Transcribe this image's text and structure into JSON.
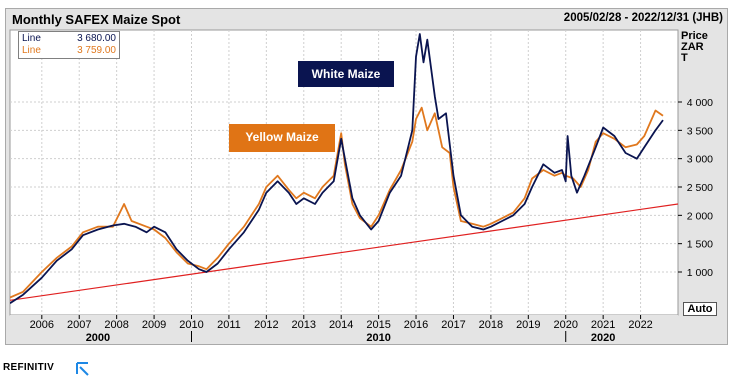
{
  "header": {
    "title": "Monthly SAFEX Maize Spot",
    "date_range": "2005/02/28 - 2022/12/31 (JHB)"
  },
  "legend": {
    "items": [
      {
        "label": "Line",
        "value": "3 680.00",
        "color": "#0a1450"
      },
      {
        "label": "Line",
        "value": "3 759.00",
        "color": "#e0781e"
      }
    ]
  },
  "y_unit": {
    "line1": "Price",
    "line2": "ZAR",
    "line3": "T"
  },
  "annotations": {
    "white": {
      "text": "White Maize",
      "bg": "#0a1450"
    },
    "yellow": {
      "text": "Yellow Maize",
      "bg": "#e07415"
    }
  },
  "auto_button": "Auto",
  "footer": {
    "brand": "REFINITIV"
  },
  "chart_data": {
    "type": "line",
    "title": "Monthly SAFEX Maize Spot",
    "x_ticks": [
      "2006",
      "2007",
      "2008",
      "2009",
      "2010",
      "2011",
      "2012",
      "2013",
      "2014",
      "2015",
      "2016",
      "2017",
      "2018",
      "2019",
      "2020",
      "2021",
      "2022"
    ],
    "decade_labels": [
      {
        "label": "2000",
        "at": 2007.5
      },
      {
        "label": "2010",
        "at": 2015
      },
      {
        "label": "2020",
        "at": 2021
      }
    ],
    "y_ticks": [
      "1 000",
      "1 500",
      "2 000",
      "2 500",
      "3 000",
      "3 500",
      "4 000"
    ],
    "ylim": [
      0,
      4700
    ],
    "xlim": [
      2005.15,
      2023.0
    ],
    "grid": true,
    "series": [
      {
        "name": "Line",
        "color": "#0a1450",
        "points": [
          [
            2005.15,
            450
          ],
          [
            2005.5,
            600
          ],
          [
            2006.0,
            900
          ],
          [
            2006.4,
            1200
          ],
          [
            2006.8,
            1400
          ],
          [
            2007.1,
            1650
          ],
          [
            2007.5,
            1750
          ],
          [
            2007.9,
            1820
          ],
          [
            2008.2,
            1850
          ],
          [
            2008.5,
            1800
          ],
          [
            2008.8,
            1700
          ],
          [
            2009.0,
            1800
          ],
          [
            2009.3,
            1700
          ],
          [
            2009.6,
            1400
          ],
          [
            2009.9,
            1200
          ],
          [
            2010.2,
            1050
          ],
          [
            2010.4,
            1000
          ],
          [
            2010.7,
            1150
          ],
          [
            2011.0,
            1400
          ],
          [
            2011.4,
            1700
          ],
          [
            2011.8,
            2100
          ],
          [
            2012.0,
            2400
          ],
          [
            2012.3,
            2600
          ],
          [
            2012.6,
            2400
          ],
          [
            2012.8,
            2200
          ],
          [
            2013.0,
            2300
          ],
          [
            2013.3,
            2200
          ],
          [
            2013.5,
            2400
          ],
          [
            2013.8,
            2600
          ],
          [
            2014.0,
            3350
          ],
          [
            2014.1,
            3000
          ],
          [
            2014.3,
            2300
          ],
          [
            2014.5,
            2000
          ],
          [
            2014.8,
            1750
          ],
          [
            2015.0,
            1900
          ],
          [
            2015.3,
            2400
          ],
          [
            2015.6,
            2700
          ],
          [
            2015.9,
            3500
          ],
          [
            2016.0,
            4800
          ],
          [
            2016.1,
            5200
          ],
          [
            2016.2,
            4700
          ],
          [
            2016.3,
            5100
          ],
          [
            2016.5,
            4100
          ],
          [
            2016.6,
            3700
          ],
          [
            2016.8,
            3800
          ],
          [
            2017.0,
            2700
          ],
          [
            2017.2,
            2000
          ],
          [
            2017.5,
            1800
          ],
          [
            2017.8,
            1750
          ],
          [
            2018.0,
            1800
          ],
          [
            2018.3,
            1900
          ],
          [
            2018.6,
            2000
          ],
          [
            2018.9,
            2200
          ],
          [
            2019.1,
            2500
          ],
          [
            2019.4,
            2900
          ],
          [
            2019.7,
            2750
          ],
          [
            2019.9,
            2800
          ],
          [
            2020.0,
            2600
          ],
          [
            2020.05,
            3400
          ],
          [
            2020.15,
            2700
          ],
          [
            2020.3,
            2400
          ],
          [
            2020.5,
            2700
          ],
          [
            2020.8,
            3200
          ],
          [
            2021.0,
            3550
          ],
          [
            2021.3,
            3400
          ],
          [
            2021.6,
            3100
          ],
          [
            2021.9,
            3000
          ],
          [
            2022.1,
            3200
          ],
          [
            2022.4,
            3500
          ],
          [
            2022.6,
            3680
          ]
        ]
      },
      {
        "name": "Line",
        "color": "#e0781e",
        "points": [
          [
            2005.15,
            550
          ],
          [
            2005.5,
            650
          ],
          [
            2006.0,
            1000
          ],
          [
            2006.4,
            1250
          ],
          [
            2006.8,
            1450
          ],
          [
            2007.1,
            1700
          ],
          [
            2007.5,
            1800
          ],
          [
            2007.9,
            1800
          ],
          [
            2008.2,
            2200
          ],
          [
            2008.4,
            1900
          ],
          [
            2008.8,
            1800
          ],
          [
            2009.0,
            1750
          ],
          [
            2009.3,
            1600
          ],
          [
            2009.6,
            1350
          ],
          [
            2009.9,
            1150
          ],
          [
            2010.2,
            1100
          ],
          [
            2010.4,
            1050
          ],
          [
            2010.7,
            1250
          ],
          [
            2011.0,
            1500
          ],
          [
            2011.4,
            1800
          ],
          [
            2011.8,
            2200
          ],
          [
            2012.0,
            2500
          ],
          [
            2012.3,
            2700
          ],
          [
            2012.6,
            2450
          ],
          [
            2012.8,
            2300
          ],
          [
            2013.0,
            2400
          ],
          [
            2013.3,
            2300
          ],
          [
            2013.5,
            2500
          ],
          [
            2013.8,
            2700
          ],
          [
            2014.0,
            3450
          ],
          [
            2014.1,
            2900
          ],
          [
            2014.3,
            2200
          ],
          [
            2014.5,
            1950
          ],
          [
            2014.8,
            1800
          ],
          [
            2015.0,
            2000
          ],
          [
            2015.3,
            2450
          ],
          [
            2015.6,
            2800
          ],
          [
            2015.9,
            3300
          ],
          [
            2016.0,
            3700
          ],
          [
            2016.15,
            3900
          ],
          [
            2016.3,
            3500
          ],
          [
            2016.5,
            3800
          ],
          [
            2016.7,
            3200
          ],
          [
            2016.9,
            3100
          ],
          [
            2017.0,
            2500
          ],
          [
            2017.2,
            1900
          ],
          [
            2017.5,
            1850
          ],
          [
            2017.8,
            1800
          ],
          [
            2018.0,
            1850
          ],
          [
            2018.3,
            1950
          ],
          [
            2018.6,
            2050
          ],
          [
            2018.9,
            2300
          ],
          [
            2019.1,
            2650
          ],
          [
            2019.4,
            2800
          ],
          [
            2019.7,
            2700
          ],
          [
            2019.9,
            2750
          ],
          [
            2020.0,
            2700
          ],
          [
            2020.2,
            2650
          ],
          [
            2020.4,
            2500
          ],
          [
            2020.6,
            2800
          ],
          [
            2020.8,
            3300
          ],
          [
            2021.0,
            3450
          ],
          [
            2021.3,
            3350
          ],
          [
            2021.6,
            3200
          ],
          [
            2021.9,
            3250
          ],
          [
            2022.1,
            3400
          ],
          [
            2022.4,
            3850
          ],
          [
            2022.6,
            3759
          ]
        ]
      }
    ],
    "trendline": {
      "color": "#e02020",
      "from": [
        2005.15,
        500
      ],
      "to": [
        2023.0,
        2200
      ]
    }
  }
}
